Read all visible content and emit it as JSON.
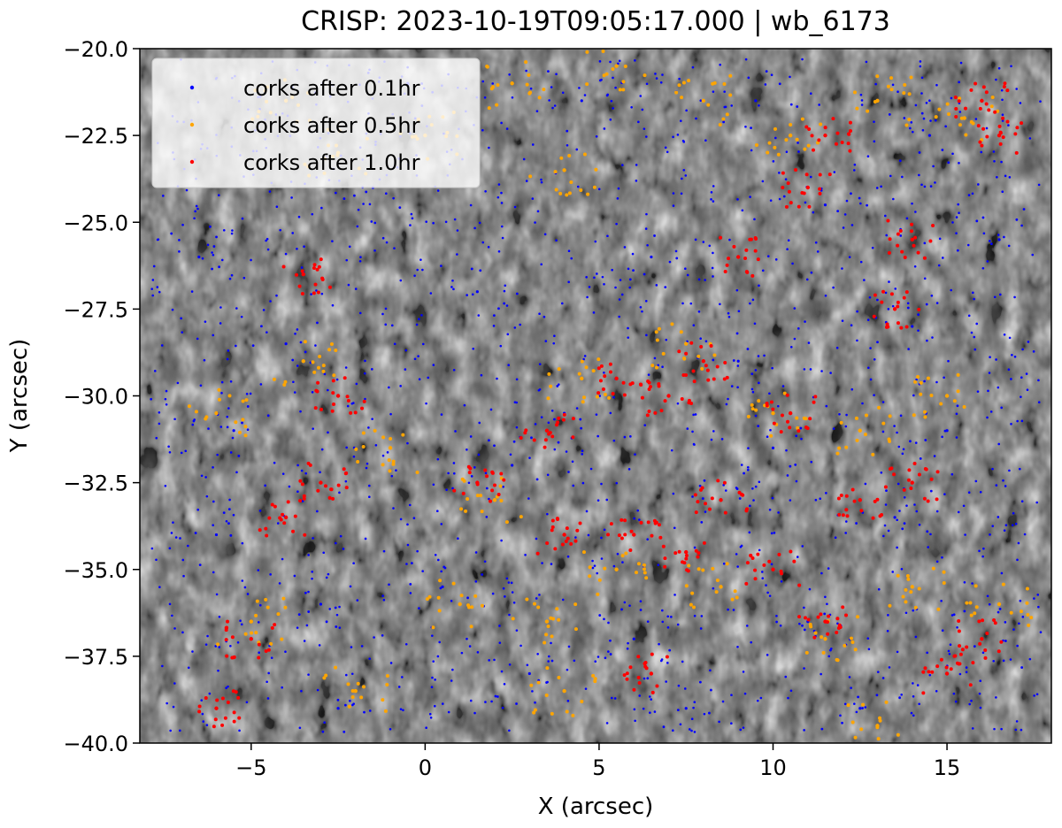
{
  "chart_data": {
    "type": "scatter",
    "title": "CRISP: 2023-10-19T09:05:17.000 | wb_6173",
    "xlabel": "X (arcsec)",
    "ylabel": "Y (arcsec)",
    "xlim": [
      -8.2,
      18.0
    ],
    "ylim": [
      -40.0,
      -20.0
    ],
    "x_ticks": [
      -5,
      0,
      5,
      10,
      15
    ],
    "x_tick_labels": [
      "−5",
      "0",
      "5",
      "10",
      "15"
    ],
    "y_ticks": [
      -20.0,
      -22.5,
      -25.0,
      -27.5,
      -30.0,
      -32.5,
      -35.0,
      -37.5,
      -40.0
    ],
    "y_tick_labels": [
      "−20.0",
      "−22.5",
      "−25.0",
      "−27.5",
      "−30.0",
      "−32.5",
      "−35.0",
      "−37.5",
      "−40.0"
    ],
    "background": "grayscale granulation image (wb_6173)",
    "grid": false,
    "legend_position": "upper-left",
    "series": [
      {
        "name": "corks after 0.1hr",
        "color": "#0000ff",
        "marker": "dot",
        "distribution": "dense field of points covering the whole field of view",
        "sample_points": [
          [
            -6.5,
            -26.0
          ],
          [
            -4.0,
            -28.5
          ],
          [
            -1.5,
            -24.0
          ],
          [
            1.5,
            -27.0
          ],
          [
            4.0,
            -30.5
          ],
          [
            6.5,
            -26.0
          ],
          [
            9.0,
            -29.0
          ],
          [
            11.5,
            -24.5
          ],
          [
            14.0,
            -28.0
          ],
          [
            16.5,
            -25.5
          ],
          [
            -6.0,
            -34.0
          ],
          [
            -3.0,
            -36.0
          ],
          [
            0.5,
            -35.5
          ],
          [
            3.0,
            -38.0
          ],
          [
            6.0,
            -37.0
          ],
          [
            8.5,
            -33.0
          ],
          [
            11.0,
            -36.5
          ],
          [
            13.5,
            -33.5
          ],
          [
            16.0,
            -37.0
          ],
          [
            -5.5,
            -31.0
          ],
          [
            2.5,
            -32.0
          ],
          [
            10.0,
            -31.5
          ],
          [
            15.0,
            -31.0
          ],
          [
            -2.5,
            -39.0
          ],
          [
            7.5,
            -39.0
          ],
          [
            12.5,
            -39.0
          ],
          [
            4.5,
            -21.5
          ],
          [
            -0.5,
            -21.0
          ],
          [
            9.5,
            -21.5
          ],
          [
            14.5,
            -22.5
          ]
        ]
      },
      {
        "name": "corks after 0.5hr",
        "color": "#ffa500",
        "marker": "dot",
        "distribution": "points concentrated along intergranular lanes",
        "sample_points": [
          [
            -4.0,
            -21.5
          ],
          [
            -2.5,
            -23.0
          ],
          [
            0.0,
            -22.5
          ],
          [
            2.5,
            -21.0
          ],
          [
            4.0,
            -23.5
          ],
          [
            5.5,
            -20.5
          ],
          [
            8.0,
            -21.5
          ],
          [
            10.5,
            -22.5
          ],
          [
            13.0,
            -21.5
          ],
          [
            15.5,
            -22.0
          ],
          [
            -6.0,
            -30.5
          ],
          [
            -3.5,
            -29.0
          ],
          [
            -1.0,
            -31.5
          ],
          [
            2.0,
            -33.0
          ],
          [
            4.5,
            -29.5
          ],
          [
            7.5,
            -28.5
          ],
          [
            10.0,
            -30.5
          ],
          [
            12.5,
            -31.0
          ],
          [
            15.0,
            -30.0
          ],
          [
            -5.0,
            -36.5
          ],
          [
            -2.0,
            -38.5
          ],
          [
            1.0,
            -36.0
          ],
          [
            3.5,
            -36.5
          ],
          [
            5.5,
            -35.0
          ],
          [
            8.5,
            -35.5
          ],
          [
            11.5,
            -37.0
          ],
          [
            14.0,
            -35.5
          ],
          [
            16.5,
            -36.0
          ],
          [
            4.0,
            -38.5
          ],
          [
            13.0,
            -39.5
          ]
        ]
      },
      {
        "name": "corks after 1.0hr",
        "color": "#ff0000",
        "marker": "dot",
        "distribution": "points converging onto network boundaries",
        "sample_points": [
          [
            -6.0,
            -39.0
          ],
          [
            -5.0,
            -37.0
          ],
          [
            -4.0,
            -33.5
          ],
          [
            -3.0,
            -32.5
          ],
          [
            -2.5,
            -30.0
          ],
          [
            -3.5,
            -26.5
          ],
          [
            1.5,
            -32.5
          ],
          [
            3.5,
            -31.0
          ],
          [
            4.0,
            -34.0
          ],
          [
            5.5,
            -29.5
          ],
          [
            7.0,
            -30.0
          ],
          [
            8.0,
            -29.0
          ],
          [
            9.0,
            -26.0
          ],
          [
            10.5,
            -30.5
          ],
          [
            11.0,
            -24.0
          ],
          [
            11.5,
            -22.5
          ],
          [
            13.5,
            -27.5
          ],
          [
            14.0,
            -25.5
          ],
          [
            16.0,
            -21.5
          ],
          [
            16.5,
            -22.5
          ],
          [
            6.0,
            -34.0
          ],
          [
            7.5,
            -34.5
          ],
          [
            8.5,
            -33.0
          ],
          [
            10.0,
            -35.0
          ],
          [
            11.5,
            -36.5
          ],
          [
            12.5,
            -33.0
          ],
          [
            14.0,
            -32.5
          ],
          [
            6.5,
            -38.0
          ],
          [
            15.0,
            -38.0
          ],
          [
            16.0,
            -37.0
          ]
        ]
      }
    ]
  }
}
